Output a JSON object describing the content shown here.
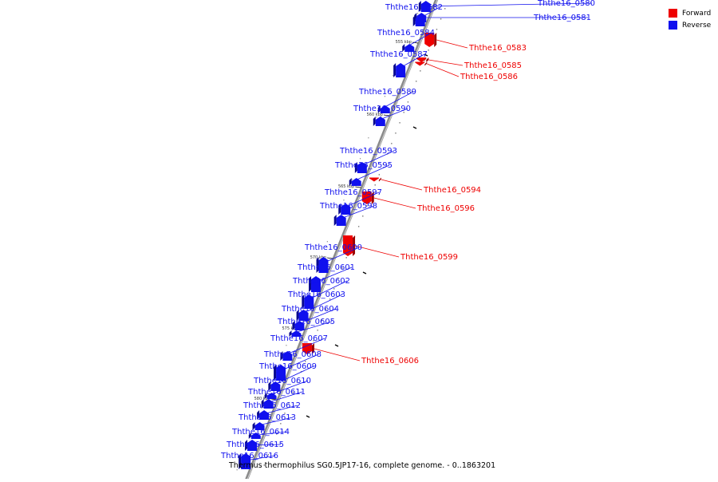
{
  "legend": {
    "forward_label": "Forward",
    "reverse_label": "Reverse",
    "forward_color": "#ee0000",
    "reverse_color": "#1010ee"
  },
  "caption": "Thermus thermophilus SG0.5JP17-16, complete genome. - 0..1863201",
  "scale_ticks": [
    "555 kbp",
    "560 kbp",
    "565 kbp",
    "570 kbp",
    "575 kbp",
    "580 kbp"
  ],
  "genes": [
    {
      "name": "Ththe16_0580",
      "strand": "reverse"
    },
    {
      "name": "Ththe16_0581",
      "strand": "reverse"
    },
    {
      "name": "Ththe16_0582",
      "strand": "reverse"
    },
    {
      "name": "Ththe16_0583",
      "strand": "forward"
    },
    {
      "name": "Ththe16_0584",
      "strand": "reverse"
    },
    {
      "name": "Ththe16_0585",
      "strand": "forward"
    },
    {
      "name": "Ththe16_0586",
      "strand": "forward"
    },
    {
      "name": "Ththe16_0587",
      "strand": "reverse"
    },
    {
      "name": "Ththe16_0589",
      "strand": "reverse"
    },
    {
      "name": "Ththe16_0590",
      "strand": "reverse"
    },
    {
      "name": "Ththe16_0593",
      "strand": "reverse"
    },
    {
      "name": "Ththe16_0594",
      "strand": "forward"
    },
    {
      "name": "Ththe16_0595",
      "strand": "reverse"
    },
    {
      "name": "Ththe16_0596",
      "strand": "forward"
    },
    {
      "name": "Ththe16_0597",
      "strand": "reverse"
    },
    {
      "name": "Ththe16_0598",
      "strand": "reverse"
    },
    {
      "name": "Ththe16_0599",
      "strand": "forward"
    },
    {
      "name": "Ththe16_0600",
      "strand": "reverse"
    },
    {
      "name": "Ththe16_0601",
      "strand": "reverse"
    },
    {
      "name": "Ththe16_0602",
      "strand": "reverse"
    },
    {
      "name": "Ththe16_0603",
      "strand": "reverse"
    },
    {
      "name": "Ththe16_0604",
      "strand": "reverse"
    },
    {
      "name": "Ththe16_0605",
      "strand": "reverse"
    },
    {
      "name": "Ththe16_0606",
      "strand": "forward"
    },
    {
      "name": "Ththe16_0607",
      "strand": "reverse"
    },
    {
      "name": "Ththe16_0608",
      "strand": "reverse"
    },
    {
      "name": "Ththe16_0609",
      "strand": "reverse"
    },
    {
      "name": "Ththe16_0610",
      "strand": "reverse"
    },
    {
      "name": "Ththe16_0611",
      "strand": "reverse"
    },
    {
      "name": "Ththe16_0612",
      "strand": "reverse"
    },
    {
      "name": "Ththe16_0613",
      "strand": "reverse"
    },
    {
      "name": "Ththe16_0614",
      "strand": "reverse"
    },
    {
      "name": "Ththe16_0615",
      "strand": "reverse"
    },
    {
      "name": "Ththe16_0616",
      "strand": "reverse"
    }
  ]
}
